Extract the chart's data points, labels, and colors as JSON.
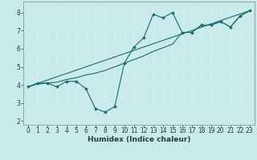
{
  "xlabel": "Humidex (Indice chaleur)",
  "bg_color": "#c8eaea",
  "grid_color": "#d4eded",
  "line_color": "#1a6b6b",
  "xlim": [
    -0.5,
    23.5
  ],
  "ylim": [
    1.8,
    8.6
  ],
  "xticks": [
    0,
    1,
    2,
    3,
    4,
    5,
    6,
    7,
    8,
    9,
    10,
    11,
    12,
    13,
    14,
    15,
    16,
    17,
    18,
    19,
    20,
    21,
    22,
    23
  ],
  "yticks": [
    2,
    3,
    4,
    5,
    6,
    7,
    8
  ],
  "line1_x": [
    0,
    1,
    2,
    3,
    4,
    5,
    6,
    7,
    8,
    9,
    10,
    11,
    12,
    13,
    14,
    15,
    16,
    17,
    18,
    19,
    20,
    21,
    22,
    23
  ],
  "line1_y": [
    3.9,
    4.1,
    4.1,
    3.9,
    4.2,
    4.2,
    3.8,
    2.7,
    2.5,
    2.8,
    5.2,
    6.1,
    6.6,
    7.9,
    7.7,
    8.0,
    6.9,
    6.9,
    7.3,
    7.3,
    7.5,
    7.2,
    7.8,
    8.1
  ],
  "line2_x": [
    0,
    1,
    2,
    3,
    4,
    5,
    6,
    7,
    8,
    9,
    10,
    11,
    12,
    13,
    14,
    15,
    16,
    17,
    18,
    19,
    20,
    21,
    22,
    23
  ],
  "line2_y": [
    3.9,
    4.05,
    4.1,
    4.15,
    4.3,
    4.4,
    4.55,
    4.65,
    4.8,
    5.0,
    5.2,
    5.4,
    5.6,
    5.85,
    6.05,
    6.25,
    6.9,
    6.9,
    7.3,
    7.3,
    7.5,
    7.2,
    7.8,
    8.1
  ],
  "line3_x": [
    0,
    23
  ],
  "line3_y": [
    3.9,
    8.1
  ]
}
